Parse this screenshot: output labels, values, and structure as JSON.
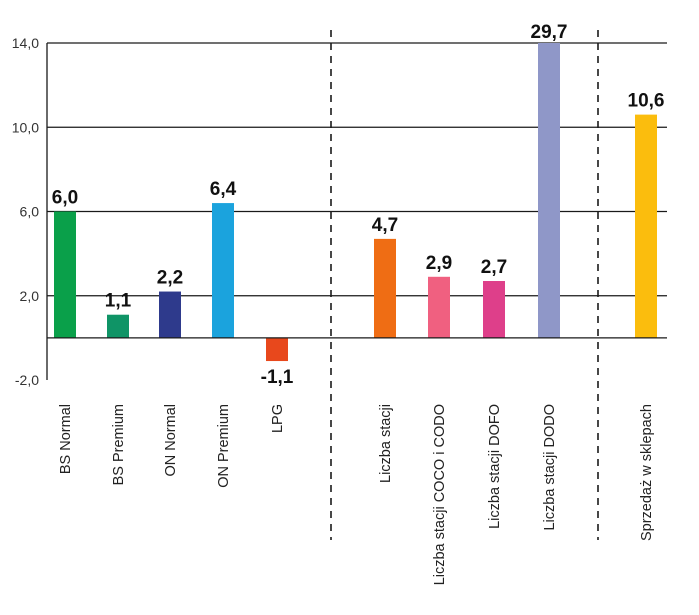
{
  "chart_data": {
    "type": "bar",
    "categories": [
      "BS Normal",
      "BS Premium",
      "ON Normal",
      "ON Premium",
      "LPG",
      "Liczba stacji",
      "Liczba stacji COCO i CODO",
      "Liczba stacji DOFO",
      "Liczba stacji DODO",
      "Sprzedaż w sklepach"
    ],
    "values": [
      6.0,
      1.1,
      2.2,
      6.4,
      -1.1,
      4.7,
      2.9,
      2.7,
      29.7,
      10.6
    ],
    "value_labels": [
      "6,0",
      "1,1",
      "2,2",
      "6,4",
      "-1,1",
      "4,7",
      "2,9",
      "2,7",
      "29,7",
      "10,6"
    ],
    "colors": [
      "#0aa04a",
      "#0f9466",
      "#2e3a8c",
      "#1ba3dd",
      "#e8481c",
      "#ef6d14",
      "#f06080",
      "#de3f8a",
      "#8f97c8",
      "#fbbd0d"
    ],
    "ylim": [
      -2,
      14
    ],
    "yticks": [
      14,
      10,
      6,
      2,
      -2
    ],
    "ytick_labels": [
      "14,0",
      "10,0",
      "6,0",
      "2,0",
      "-2,0"
    ],
    "grid": true,
    "group_separators_after": [
      "LPG",
      "Liczba stacji DODO"
    ],
    "title": "",
    "xlabel": "",
    "ylabel": ""
  }
}
